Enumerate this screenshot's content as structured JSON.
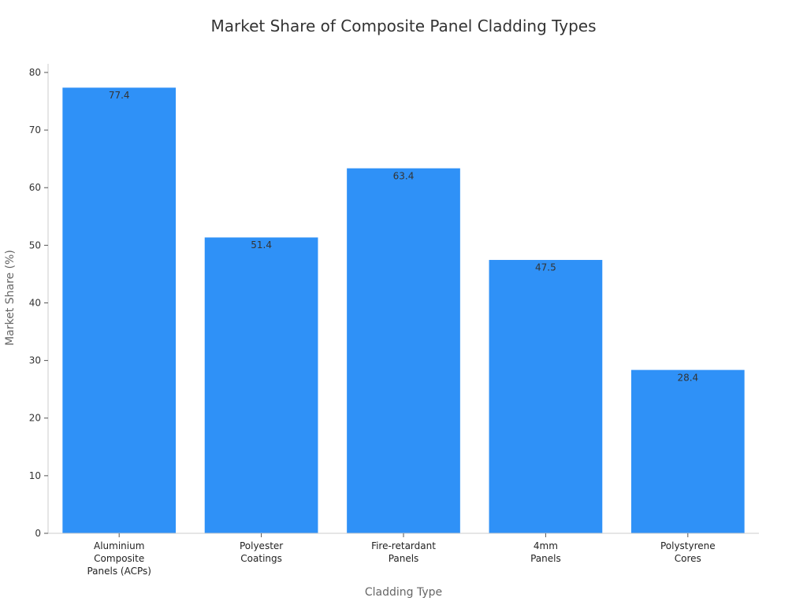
{
  "chart_data": {
    "type": "bar",
    "title": "Market Share of Composite Panel Cladding Types",
    "xlabel": "Cladding Type",
    "ylabel": "Market Share (%)",
    "categories": [
      [
        "Aluminium",
        "Composite",
        "Panels (ACPs)"
      ],
      [
        "Polyester",
        "Coatings"
      ],
      [
        "Fire-retardant",
        "Panels"
      ],
      [
        "4mm",
        "Panels"
      ],
      [
        "Polystyrene",
        "Cores"
      ]
    ],
    "values": [
      77.4,
      51.4,
      63.4,
      47.5,
      28.4
    ],
    "data_labels": [
      "77.4",
      "51.4",
      "63.4",
      "47.5",
      "28.4"
    ],
    "ylim": [
      0,
      81.5
    ],
    "yticks": [
      0,
      10,
      20,
      30,
      40,
      50,
      60,
      70,
      80
    ],
    "bar_color": "#2f91f7",
    "grid": false,
    "legend": "none"
  }
}
